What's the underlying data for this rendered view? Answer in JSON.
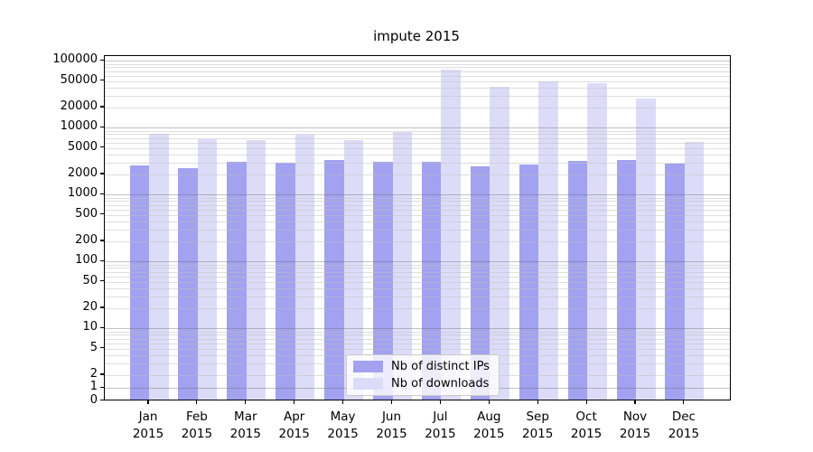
{
  "chart_data": {
    "type": "bar",
    "title": "impute 2015",
    "categories": [
      "Jan 2015",
      "Feb 2015",
      "Mar 2015",
      "Apr 2015",
      "May 2015",
      "Jun 2015",
      "Jul 2015",
      "Aug 2015",
      "Sep 2015",
      "Oct 2015",
      "Nov 2015",
      "Dec 2015"
    ],
    "series": [
      {
        "name": "Nb of distinct IPs",
        "color": "#a2a2f0",
        "values": [
          2540,
          2360,
          2900,
          2820,
          3070,
          2930,
          2900,
          2460,
          2620,
          3000,
          3100,
          2760
        ]
      },
      {
        "name": "Nb of downloads",
        "color": "#dcdcf9",
        "values": [
          7600,
          6300,
          6200,
          7300,
          6200,
          8100,
          70000,
          38000,
          46000,
          44000,
          26000,
          5700
        ]
      }
    ],
    "yscale": "symlog",
    "linthresh": 2,
    "y_ticks": [
      0,
      1,
      2,
      5,
      10,
      20,
      50,
      100,
      200,
      500,
      1000,
      2000,
      5000,
      10000,
      20000,
      50000,
      100000
    ],
    "ylim": [
      0,
      120000
    ],
    "xlabel": "",
    "ylabel": "",
    "grid": "major-and-minor, horizontal, drawn over bars",
    "legend_position": "lower center",
    "colors": {
      "grid_major": "#c6c6c6",
      "grid_minor": "#eaeaea",
      "spine": "#000000",
      "background": "#ffffff"
    }
  }
}
